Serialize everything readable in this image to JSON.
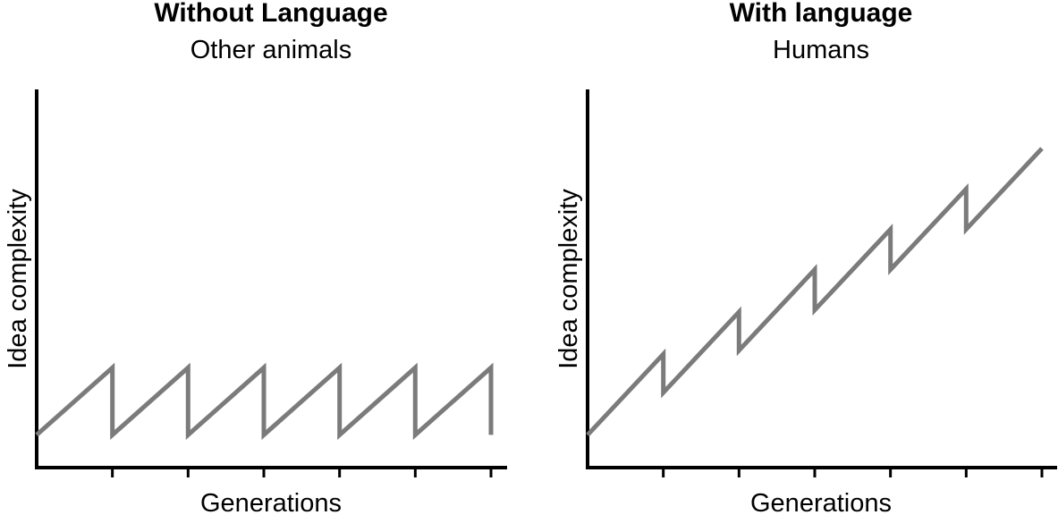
{
  "chart_data": [
    {
      "type": "line",
      "title": "Without Language",
      "subtitle": "Other animals",
      "xlabel": "Generations",
      "ylabel": "Idea complexity",
      "xlim": [
        0,
        6
      ],
      "ylim": [
        0,
        10
      ],
      "grid": false,
      "x_ticks": [
        0,
        1,
        2,
        3,
        4,
        5,
        6
      ],
      "series": [
        {
          "color": "#7b7b7b",
          "x": [
            0,
            1,
            1,
            2,
            2,
            3,
            3,
            4,
            4,
            5,
            5,
            6,
            6
          ],
          "y": [
            0.85,
            2.6,
            0.85,
            2.6,
            0.85,
            2.6,
            0.85,
            2.6,
            0.85,
            2.6,
            0.85,
            2.6,
            0.85
          ]
        }
      ]
    },
    {
      "type": "line",
      "title": "With language",
      "subtitle": "Humans",
      "xlabel": "Generations",
      "ylabel": "Idea complexity",
      "xlim": [
        0,
        6
      ],
      "ylim": [
        0,
        10
      ],
      "grid": false,
      "x_ticks": [
        0,
        1,
        2,
        3,
        4,
        5,
        6
      ],
      "series": [
        {
          "color": "#7b7b7b",
          "x": [
            0,
            1,
            1,
            2,
            2,
            3,
            3,
            4,
            4,
            5,
            5,
            6
          ],
          "y": [
            0.85,
            2.95,
            1.95,
            4.05,
            3.05,
            5.15,
            4.1,
            6.2,
            5.15,
            7.25,
            6.2,
            8.3
          ]
        }
      ]
    }
  ]
}
